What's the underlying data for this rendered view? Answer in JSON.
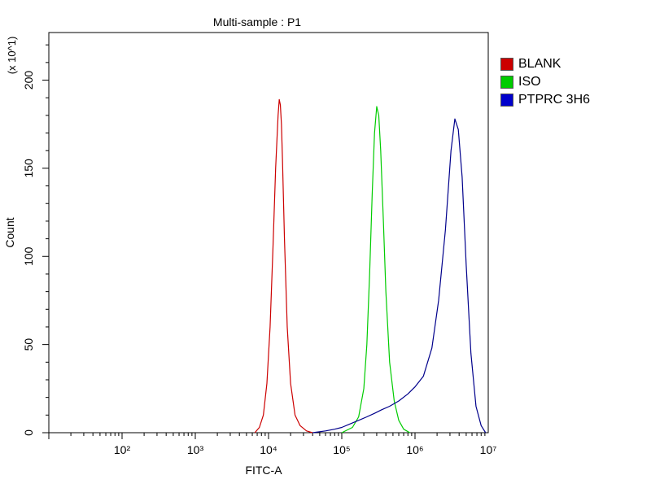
{
  "chart_data": {
    "type": "line",
    "title": "Multi-sample : P1",
    "xlabel": "FITC-A",
    "ylabel": "Count",
    "y_multiplier": "(x 10^1)",
    "x_scale": "log",
    "xlim": [
      10,
      10000000
    ],
    "ylim": [
      0,
      227
    ],
    "x_tick_labels": [
      "10²",
      "10³",
      "10⁴",
      "10⁵",
      "10⁶",
      "10⁷"
    ],
    "x_tick_values": [
      100,
      1000,
      10000,
      100000,
      1000000,
      10000000
    ],
    "y_ticks": [
      0,
      50,
      100,
      150,
      200
    ],
    "legend_position": "right",
    "series": [
      {
        "name": "BLANK",
        "color": "#cc0000",
        "x": [
          6500,
          7500,
          8500,
          9500,
          10500,
          11500,
          12500,
          13500,
          14000,
          14500,
          15000,
          15500,
          16500,
          18000,
          20000,
          23000,
          27000,
          33000,
          40000
        ],
        "y": [
          0,
          3,
          10,
          28,
          60,
          105,
          150,
          180,
          189,
          186,
          175,
          155,
          110,
          60,
          28,
          10,
          4,
          1,
          0
        ]
      },
      {
        "name": "ISO",
        "color": "#00cc00",
        "x": [
          100000,
          140000,
          170000,
          200000,
          220000,
          240000,
          260000,
          280000,
          300000,
          320000,
          340000,
          370000,
          400000,
          450000,
          520000,
          600000,
          700000,
          850000
        ],
        "y": [
          0,
          3,
          9,
          25,
          50,
          90,
          135,
          170,
          185,
          180,
          160,
          120,
          80,
          40,
          18,
          7,
          2,
          0
        ]
      },
      {
        "name": "PTPRC 3H6",
        "color": "#00008b",
        "x": [
          40000,
          60000,
          80000,
          100000,
          130000,
          170000,
          220000,
          280000,
          350000,
          450000,
          600000,
          800000,
          1000000,
          1300000,
          1700000,
          2100000,
          2600000,
          3100000,
          3500000,
          3900000,
          4400000,
          5000000,
          5800000,
          6800000,
          8000000,
          9200000
        ],
        "y": [
          0,
          1,
          2,
          3,
          5,
          7,
          9,
          11,
          13,
          15,
          18,
          22,
          26,
          32,
          48,
          75,
          115,
          160,
          178,
          172,
          145,
          95,
          45,
          15,
          4,
          0
        ]
      }
    ]
  }
}
